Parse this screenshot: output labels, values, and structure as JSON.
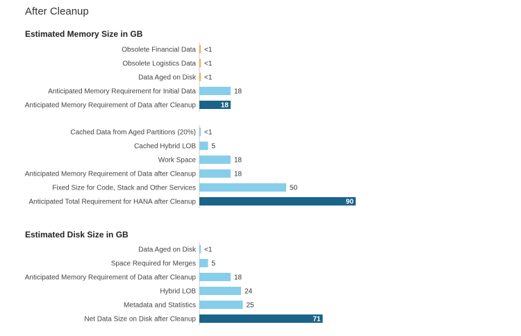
{
  "page": {
    "title": "After Cleanup"
  },
  "colors": {
    "light_bar": "#87CEEB",
    "dark_bar": "#1A6389",
    "tiny_bar": "#F0B04A",
    "axis": "#cccccc"
  },
  "chart_data": [
    {
      "type": "bar",
      "orientation": "horizontal",
      "title": "Estimated Memory Size in GB",
      "groups": [
        {
          "bars": [
            {
              "category": "Obsolete Financial Data",
              "value": 0.4,
              "label": "<1",
              "style": "tiny"
            },
            {
              "category": "Obsolete Logistics Data",
              "value": 0.4,
              "label": "<1",
              "style": "tiny"
            },
            {
              "category": "Data Aged on Disk",
              "value": 0.4,
              "label": "<1",
              "style": "tiny"
            },
            {
              "category": "Anticipated Memory Requirement for Initial Data",
              "value": 18,
              "label": "18",
              "style": "light"
            },
            {
              "category": "Anticipated Memory Requirement of Data after Cleanup",
              "value": 18,
              "label": "18",
              "style": "dark"
            }
          ]
        },
        {
          "bars": [
            {
              "category": "Cached Data from Aged Partitions (20%)",
              "value": 0.4,
              "label": "<1",
              "style": "light"
            },
            {
              "category": "Cached Hybrid LOB",
              "value": 5,
              "label": "5",
              "style": "light"
            },
            {
              "category": "Work Space",
              "value": 18,
              "label": "18",
              "style": "light"
            },
            {
              "category": "Anticipated Memory Requirement of Data after Cleanup",
              "value": 18,
              "label": "18",
              "style": "light"
            },
            {
              "category": "Fixed Size for Code, Stack and Other Services",
              "value": 50,
              "label": "50",
              "style": "light"
            },
            {
              "category": "Anticipated Total Requirement for HANA after Cleanup",
              "value": 90,
              "label": "90",
              "style": "dark"
            }
          ]
        }
      ]
    },
    {
      "type": "bar",
      "orientation": "horizontal",
      "title": "Estimated Disk Size in GB",
      "groups": [
        {
          "bars": [
            {
              "category": "Data Aged on Disk",
              "value": 0.4,
              "label": "<1",
              "style": "light"
            },
            {
              "category": "Space Required for Merges",
              "value": 5,
              "label": "5",
              "style": "light"
            },
            {
              "category": "Anticipated Memory Requirement of Data after Cleanup",
              "value": 18,
              "label": "18",
              "style": "light"
            },
            {
              "category": "Hybrid LOB",
              "value": 24,
              "label": "24",
              "style": "light"
            },
            {
              "category": "Metadata and Statistics",
              "value": 25,
              "label": "25",
              "style": "light"
            },
            {
              "category": "Net Data Size on Disk after Cleanup",
              "value": 71,
              "label": "71",
              "style": "dark"
            }
          ]
        }
      ]
    }
  ]
}
